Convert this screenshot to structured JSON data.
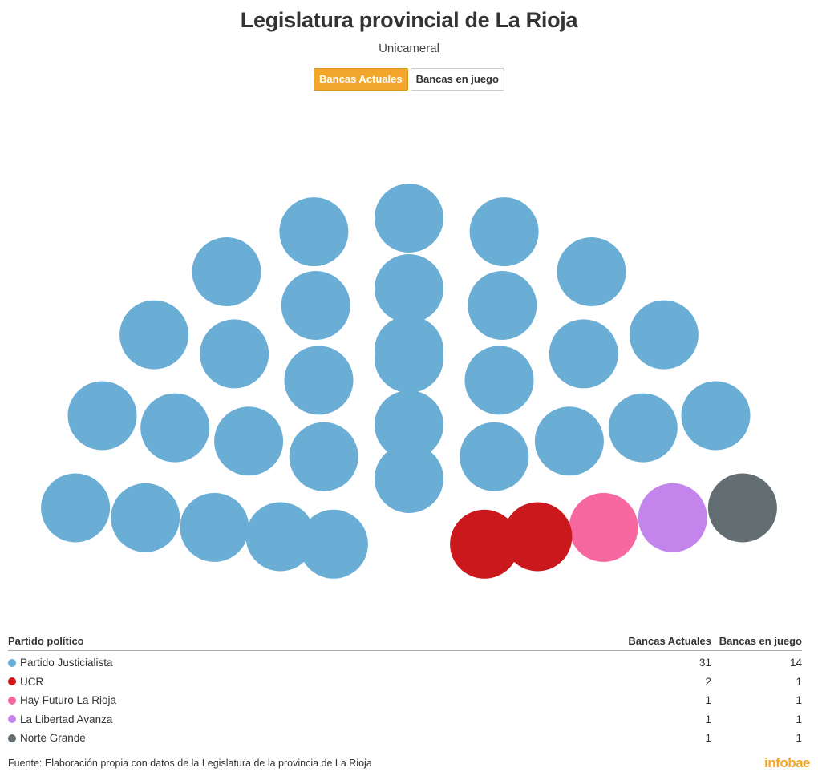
{
  "header": {
    "title": "Legislatura provincial de La Rioja",
    "subtitle": "Unicameral"
  },
  "tabs": [
    {
      "label": "Bancas Actuales",
      "active": true
    },
    {
      "label": "Bancas en juego",
      "active": false
    }
  ],
  "colors": {
    "accent": "#f2a72c",
    "logo": "#f2a72c"
  },
  "chart_data": {
    "type": "parliament",
    "active_view": "Bancas Actuales",
    "parties": [
      {
        "name": "Partido Justicialista",
        "color": "#6aadd5",
        "bancas_actuales": 31,
        "bancas_en_juego": 14
      },
      {
        "name": "UCR",
        "color": "#cb181d",
        "bancas_actuales": 2,
        "bancas_en_juego": 1
      },
      {
        "name": "Hay Futuro La Rioja",
        "color": "#f768a1",
        "bancas_actuales": 1,
        "bancas_en_juego": 1
      },
      {
        "name": "La Libertad Avanza",
        "color": "#c384ec",
        "bancas_actuales": 1,
        "bancas_en_juego": 1
      },
      {
        "name": "Norte Grande",
        "color": "#636e73",
        "bancas_actuales": 1,
        "bancas_en_juego": 1
      }
    ],
    "total_seats": 36
  },
  "table": {
    "headers": {
      "party": "Partido político",
      "current": "Bancas Actuales",
      "at_stake": "Bancas en juego"
    }
  },
  "footer": {
    "source": "Fuente: Elaboración propia con datos de la Legislatura de la provincia de La Rioja",
    "logo": "infobae"
  }
}
